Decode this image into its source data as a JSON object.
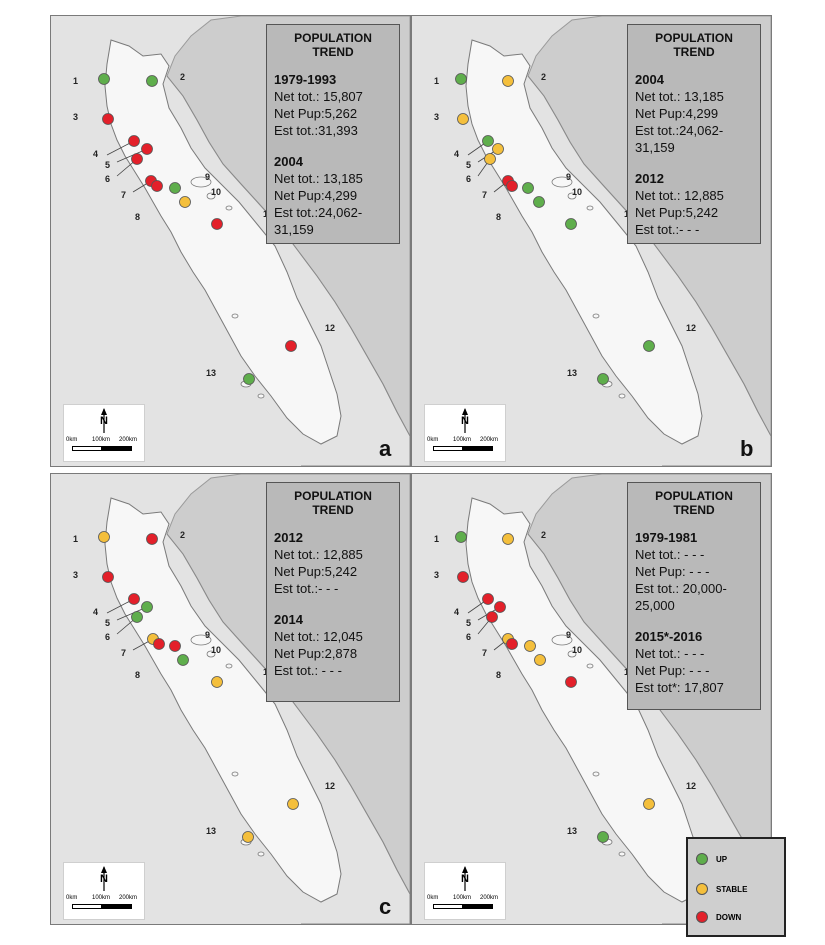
{
  "colors": {
    "up": "#5fae4c",
    "stable": "#f4bf3c",
    "down": "#e3202a",
    "land": "#f7f7f7",
    "sea": "#e3e3e3",
    "mainland_band": "#cdcdcd"
  },
  "icons": [
    "north-arrow-icon",
    "scale-bar-icon"
  ],
  "scale": {
    "north": "N",
    "ticks": [
      "0km",
      "100km",
      "200km"
    ]
  },
  "legend": {
    "up": "UP",
    "stable": "STABLE",
    "down": "DOWN"
  },
  "site_labels": [
    "1",
    "2",
    "3",
    "4",
    "5",
    "6",
    "7",
    "8",
    "9",
    "10",
    "11",
    "12",
    "13"
  ],
  "panels": [
    {
      "letter": "a",
      "title_line1": "POPULATION",
      "title_line2": "TREND",
      "blocks": [
        {
          "period": "1979-1993",
          "lines": [
            "Net tot.: 15,807",
            "Net Pup:5,262",
            "Est tot.:31,393"
          ]
        },
        {
          "period": "2004",
          "lines": [
            "Net tot.: 13,185",
            "Net Pup:4,299",
            "Est tot.:24,062-",
            "31,159"
          ]
        }
      ],
      "trends": [
        "up",
        "up",
        "down",
        "down",
        "down",
        "down",
        "down",
        "down",
        "up",
        "stable",
        "down",
        "down",
        "up"
      ]
    },
    {
      "letter": "b",
      "title_line1": "POPULATION",
      "title_line2": "TREND",
      "blocks": [
        {
          "period": "2004",
          "lines": [
            "Net tot.: 13,185",
            "Net Pup:4,299",
            "Est tot.:24,062-",
            "31,159"
          ]
        },
        {
          "period": "2012",
          "lines": [
            "Net tot.: 12,885",
            "Net Pup:5,242",
            "Est tot.:- - -"
          ]
        }
      ],
      "trends": [
        "up",
        "stable",
        "stable",
        "up",
        "stable",
        "stable",
        "down",
        "down",
        "up",
        "up",
        "up",
        "up",
        "up"
      ]
    },
    {
      "letter": "c",
      "title_line1": "POPULATION",
      "title_line2": "TREND",
      "blocks": [
        {
          "period": "2012",
          "lines": [
            "Net tot.: 12,885",
            "Net Pup:5,242",
            "Est tot.:- - -"
          ]
        },
        {
          "period": "2014",
          "lines": [
            "Net tot.: 12,045",
            "Net Pup:2,878",
            "Est tot.: - - -"
          ]
        }
      ],
      "trends": [
        "stable",
        "down",
        "down",
        "down",
        "up",
        "up",
        "stable",
        "down",
        "down",
        "up",
        "stable",
        "stable",
        "stable"
      ]
    },
    {
      "letter": "d",
      "title_line1": "POPULATION",
      "title_line2": "TREND",
      "blocks": [
        {
          "period": "1979-1981",
          "lines": [
            "Net tot.: - - -",
            "Net Pup: - - -",
            "Est tot.: 20,000-",
            "25,000"
          ]
        },
        {
          "period": "2015*-2016",
          "lines": [
            "Net tot.: - - -",
            "Net Pup: - - -",
            "Est tot*: 17,807"
          ]
        }
      ],
      "trends": [
        "up",
        "stable",
        "down",
        "down",
        "down",
        "down",
        "stable",
        "down",
        "stable",
        "stable",
        "down",
        "stable",
        "up"
      ]
    }
  ]
}
